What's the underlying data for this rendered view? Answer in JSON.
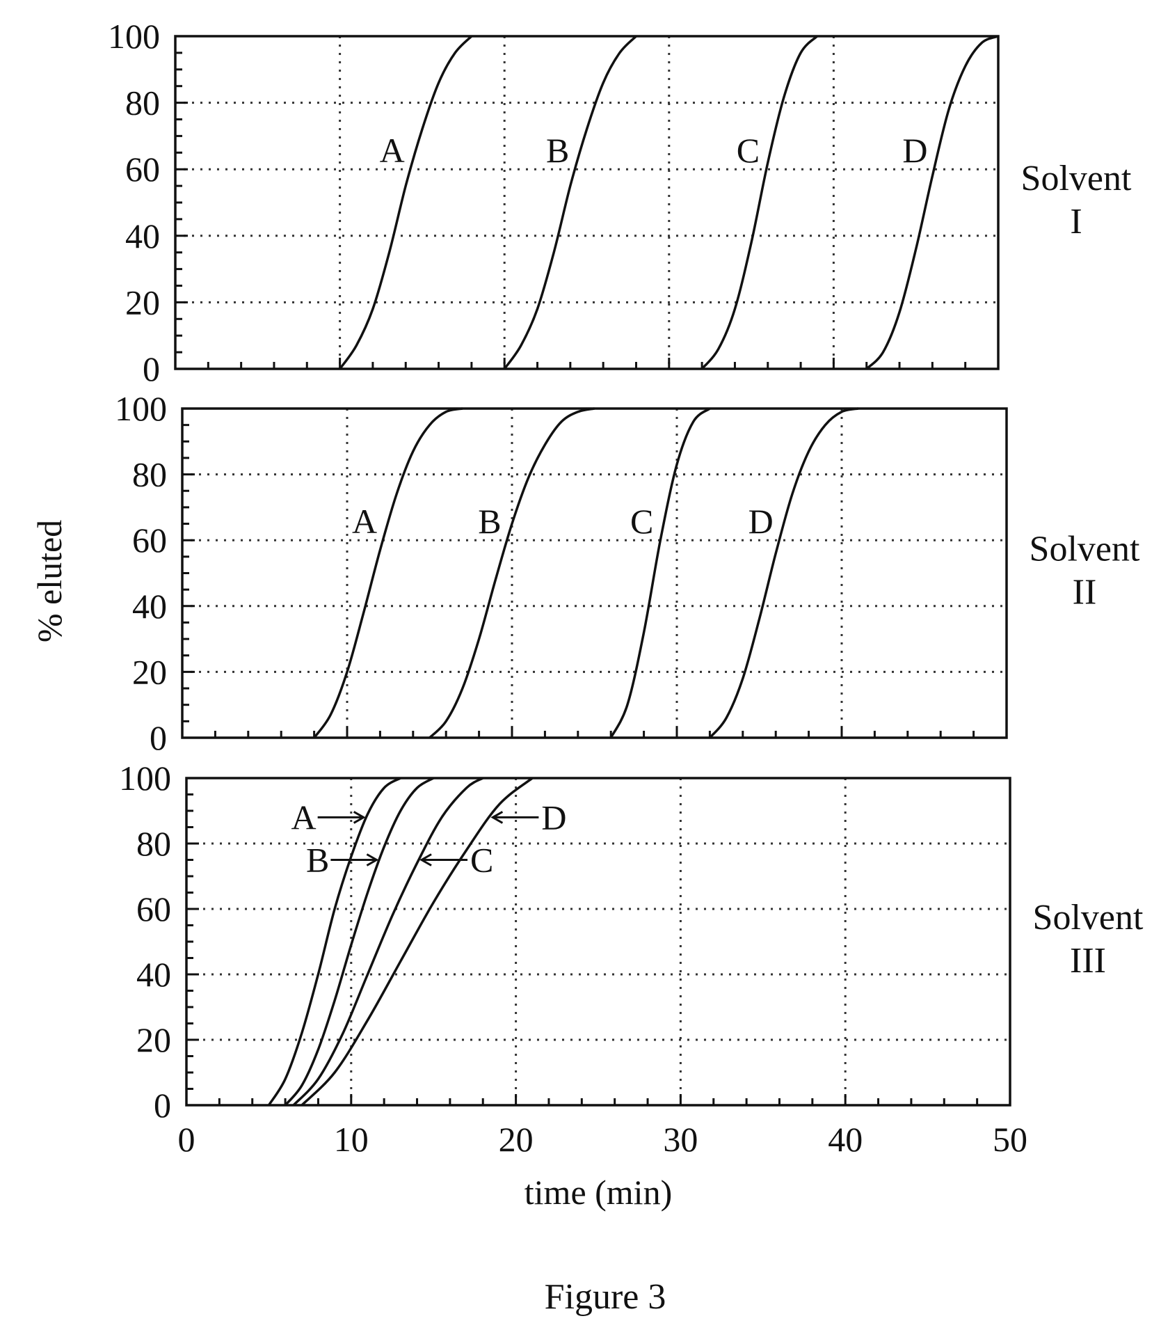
{
  "chart_data": [
    {
      "type": "line",
      "panel": "top",
      "solvent_label": [
        "Solvent",
        "I"
      ],
      "xlim": [
        0,
        50
      ],
      "ylim": [
        0,
        100
      ],
      "y_ticks": [
        "0",
        "20",
        "40",
        "60",
        "80",
        "100"
      ],
      "series": [
        {
          "name": "A",
          "x": [
            10,
            11,
            12,
            13,
            14,
            15,
            16,
            17,
            18
          ],
          "y": [
            0,
            7,
            18,
            35,
            55,
            72,
            86,
            95,
            100
          ]
        },
        {
          "name": "B",
          "x": [
            20,
            21,
            22,
            23,
            24,
            25,
            26,
            27,
            28
          ],
          "y": [
            0,
            7,
            18,
            35,
            55,
            72,
            86,
            95,
            100
          ]
        },
        {
          "name": "C",
          "x": [
            32,
            33,
            34,
            35,
            36,
            37,
            38,
            39
          ],
          "y": [
            0,
            6,
            18,
            38,
            62,
            82,
            95,
            100
          ]
        },
        {
          "name": "D",
          "x": [
            42,
            43,
            44,
            45,
            46,
            47,
            48,
            49,
            50
          ],
          "y": [
            0,
            5,
            17,
            36,
            58,
            78,
            91,
            98,
            100
          ]
        }
      ]
    },
    {
      "type": "line",
      "panel": "middle",
      "solvent_label": [
        "Solvent",
        "II"
      ],
      "xlim": [
        0,
        50
      ],
      "ylim": [
        0,
        100
      ],
      "y_ticks": [
        "0",
        "20",
        "40",
        "60",
        "80",
        "100"
      ],
      "ylabel": "% eluted",
      "series": [
        {
          "name": "A",
          "x": [
            8,
            9,
            10,
            11,
            12,
            13,
            14,
            15,
            16,
            17
          ],
          "y": [
            0,
            7,
            20,
            38,
            57,
            74,
            87,
            95,
            99,
            100
          ]
        },
        {
          "name": "B",
          "x": [
            15,
            16,
            17,
            18,
            19,
            20,
            21,
            22,
            23,
            24,
            25
          ],
          "y": [
            0,
            5,
            15,
            30,
            48,
            65,
            79,
            89,
            96,
            99,
            100
          ]
        },
        {
          "name": "C",
          "x": [
            26,
            27,
            28,
            29,
            30,
            31,
            32
          ],
          "y": [
            0,
            10,
            32,
            60,
            83,
            96,
            100
          ]
        },
        {
          "name": "D",
          "x": [
            32,
            33,
            34,
            35,
            36,
            37,
            38,
            39,
            40,
            41
          ],
          "y": [
            0,
            6,
            18,
            36,
            56,
            74,
            87,
            95,
            99,
            100
          ]
        }
      ]
    },
    {
      "type": "line",
      "panel": "bottom",
      "solvent_label": [
        "Solvent",
        "III"
      ],
      "xlim": [
        0,
        50
      ],
      "ylim": [
        0,
        100
      ],
      "y_ticks": [
        "0",
        "20",
        "40",
        "60",
        "80",
        "100"
      ],
      "x_ticks": [
        "0",
        "10",
        "20",
        "30",
        "40",
        "50"
      ],
      "xlabel": "time (min)",
      "series": [
        {
          "name": "A",
          "x": [
            5,
            6,
            7,
            8,
            9,
            10,
            11,
            12,
            13
          ],
          "y": [
            0,
            8,
            22,
            40,
            60,
            76,
            89,
            97,
            100
          ]
        },
        {
          "name": "B",
          "x": [
            6,
            7,
            8,
            9,
            10,
            11,
            12,
            13,
            14,
            15
          ],
          "y": [
            0,
            6,
            17,
            32,
            49,
            65,
            79,
            90,
            97,
            100
          ]
        },
        {
          "name": "C",
          "x": [
            6.5,
            8,
            9.5,
            11,
            12.5,
            14,
            15.5,
            17,
            18
          ],
          "y": [
            0,
            8,
            22,
            40,
            58,
            74,
            88,
            97,
            100
          ]
        },
        {
          "name": "D",
          "x": [
            7,
            9,
            11,
            13,
            15,
            17,
            19,
            21
          ],
          "y": [
            0,
            10,
            26,
            44,
            62,
            78,
            92,
            100
          ]
        }
      ],
      "annotations": [
        {
          "label": "A",
          "direction": "points-right",
          "target": "A"
        },
        {
          "label": "B",
          "direction": "points-right",
          "target": "B"
        },
        {
          "label": "C",
          "direction": "points-left",
          "target": "C"
        },
        {
          "label": "D",
          "direction": "points-left",
          "target": "D"
        }
      ]
    }
  ],
  "caption": "Figure 3"
}
